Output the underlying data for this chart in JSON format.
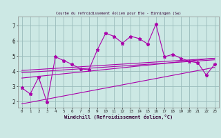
{
  "title": "Courbe du refroidissement éolien pour Ble - Binningen (Sw)",
  "xlabel": "Windchill (Refroidissement éolien,°C)",
  "bg_color": "#cce8e4",
  "grid_color": "#99bbbb",
  "line_color": "#aa00aa",
  "xlim_min": -0.5,
  "xlim_max": 23.5,
  "ylim_min": 1.6,
  "ylim_max": 7.6,
  "yticks": [
    2,
    3,
    4,
    5,
    6,
    7
  ],
  "xticks": [
    0,
    1,
    2,
    3,
    4,
    5,
    6,
    7,
    8,
    9,
    10,
    11,
    12,
    13,
    14,
    15,
    16,
    17,
    18,
    19,
    20,
    21,
    22,
    23
  ],
  "scatter_x": [
    0,
    1,
    2,
    3,
    4,
    5,
    6,
    7,
    8,
    9,
    10,
    11,
    12,
    13,
    14,
    15,
    16,
    17,
    18,
    19,
    20,
    21,
    22,
    23
  ],
  "scatter_y": [
    2.9,
    2.5,
    3.6,
    1.95,
    4.95,
    4.7,
    4.45,
    4.15,
    4.1,
    5.4,
    6.5,
    6.3,
    5.85,
    6.3,
    6.15,
    5.8,
    7.1,
    4.95,
    5.1,
    4.85,
    4.65,
    4.55,
    3.75,
    4.45
  ],
  "line1_x": [
    0,
    23
  ],
  "line1_y": [
    3.55,
    4.85
  ],
  "line2_x": [
    0,
    23
  ],
  "line2_y": [
    3.9,
    4.75
  ],
  "line3_x": [
    0,
    23
  ],
  "line3_y": [
    4.05,
    4.85
  ],
  "line4_x": [
    0,
    23
  ],
  "line4_y": [
    1.85,
    4.25
  ]
}
